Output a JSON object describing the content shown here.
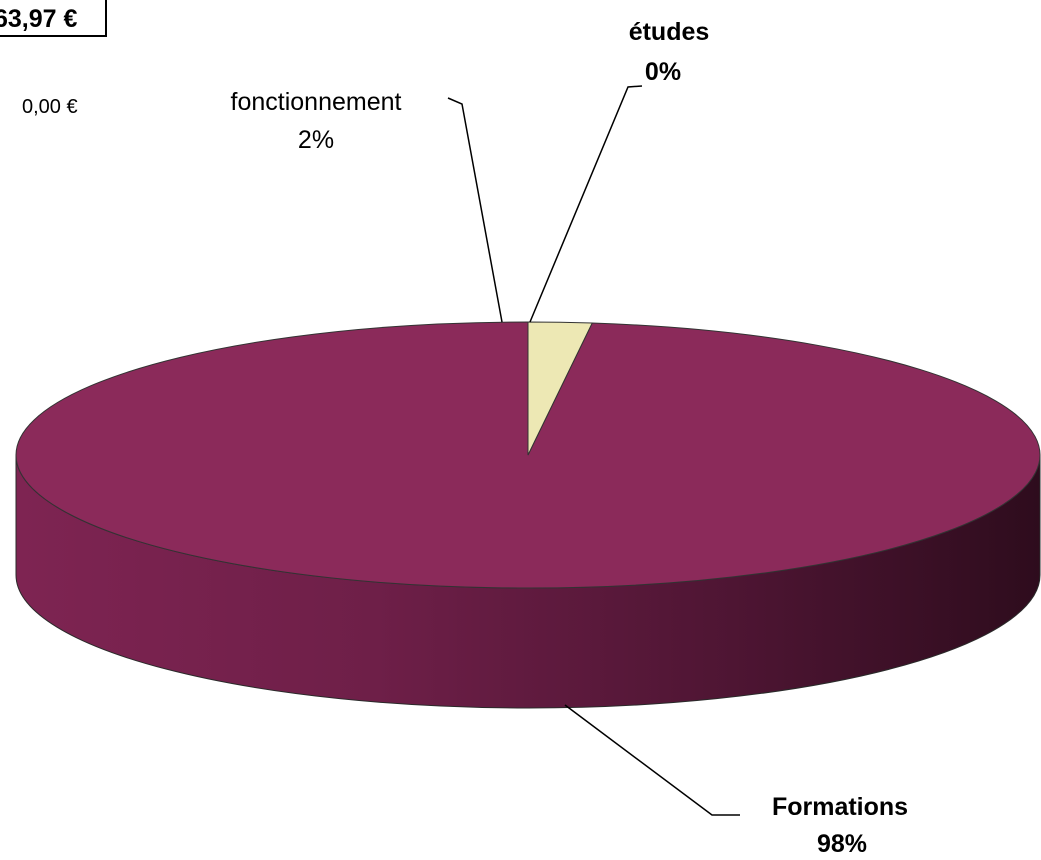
{
  "header": {
    "total_label": "63,97 €",
    "side_value": "0,00 €"
  },
  "chart_data": {
    "type": "pie",
    "title": "",
    "three_d": true,
    "legend": "none",
    "slices": [
      {
        "name": "Formations",
        "value": 98,
        "label": "98%",
        "color": "#8b2a5a"
      },
      {
        "name": "fonctionnement",
        "value": 2,
        "label": "2%",
        "color": "#ede8b4"
      },
      {
        "name": "études",
        "value": 0,
        "label": "0%",
        "color": "#b0b0d8"
      }
    ]
  }
}
